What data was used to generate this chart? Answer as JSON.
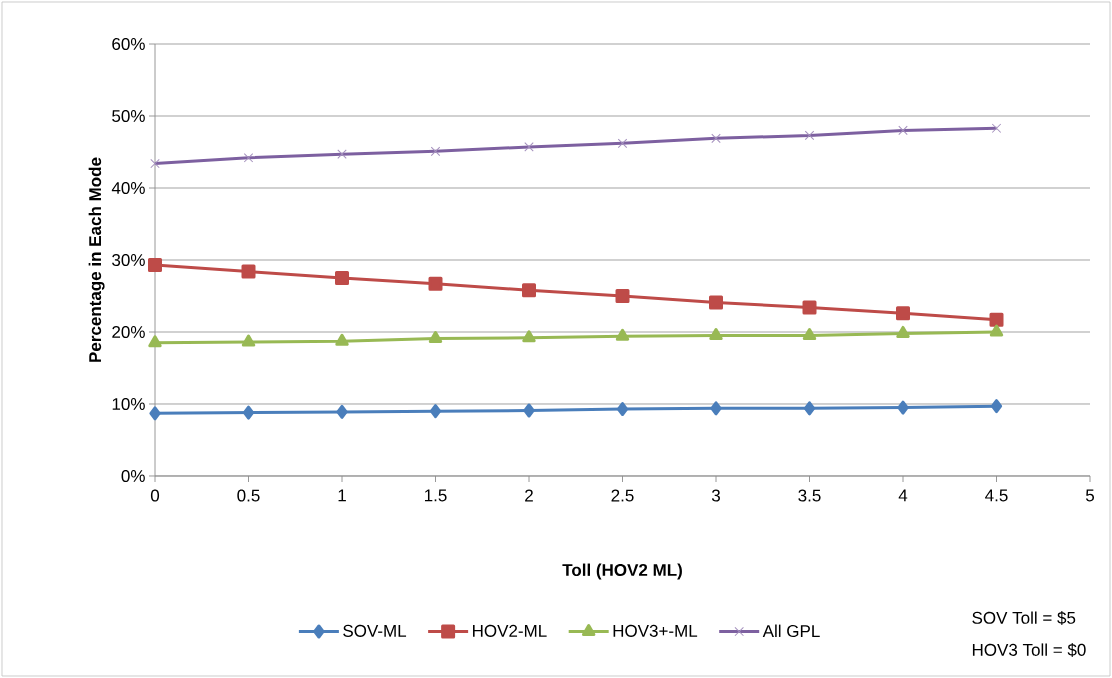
{
  "chart_data": {
    "type": "line",
    "xlabel": "Toll (HOV2 ML)",
    "ylabel": "Percentage in Each Mode",
    "x": [
      0,
      0.5,
      1,
      1.5,
      2,
      2.5,
      3,
      3.5,
      4,
      4.5
    ],
    "series": [
      {
        "name": "SOV-ML",
        "color": "#4a7ebb",
        "marker": "diamond",
        "values": [
          8.7,
          8.8,
          8.9,
          9.0,
          9.1,
          9.3,
          9.4,
          9.4,
          9.5,
          9.7
        ]
      },
      {
        "name": "HOV2-ML",
        "color": "#be4b48",
        "marker": "square",
        "values": [
          29.3,
          28.4,
          27.5,
          26.7,
          25.8,
          25.0,
          24.1,
          23.4,
          22.6,
          21.7
        ]
      },
      {
        "name": "HOV3+-ML",
        "color": "#98b954",
        "marker": "triangle",
        "values": [
          18.5,
          18.6,
          18.7,
          19.1,
          19.2,
          19.4,
          19.5,
          19.5,
          19.8,
          20.0
        ]
      },
      {
        "name": "All GPL",
        "color": "#7d60a0",
        "marker": "cross",
        "values": [
          43.4,
          44.2,
          44.7,
          45.1,
          45.7,
          46.2,
          46.9,
          47.3,
          48.0,
          48.3
        ]
      }
    ],
    "xlim": [
      0,
      5
    ],
    "xticks": [
      0,
      0.5,
      1,
      1.5,
      2,
      2.5,
      3,
      3.5,
      4,
      4.5,
      5
    ],
    "ylim": [
      0,
      60
    ],
    "yticks": [
      {
        "value": 0,
        "label": "0%"
      },
      {
        "value": 10,
        "label": "10%"
      },
      {
        "value": 20,
        "label": "20%"
      },
      {
        "value": 30,
        "label": "30%"
      },
      {
        "value": 40,
        "label": "40%"
      },
      {
        "value": 50,
        "label": "50%"
      },
      {
        "value": 60,
        "label": "60%"
      }
    ],
    "grid": "y",
    "legend": "bottom",
    "line_style": "solid",
    "annotations": [
      "SOV Toll = $5",
      "HOV3 Toll = $0"
    ]
  }
}
